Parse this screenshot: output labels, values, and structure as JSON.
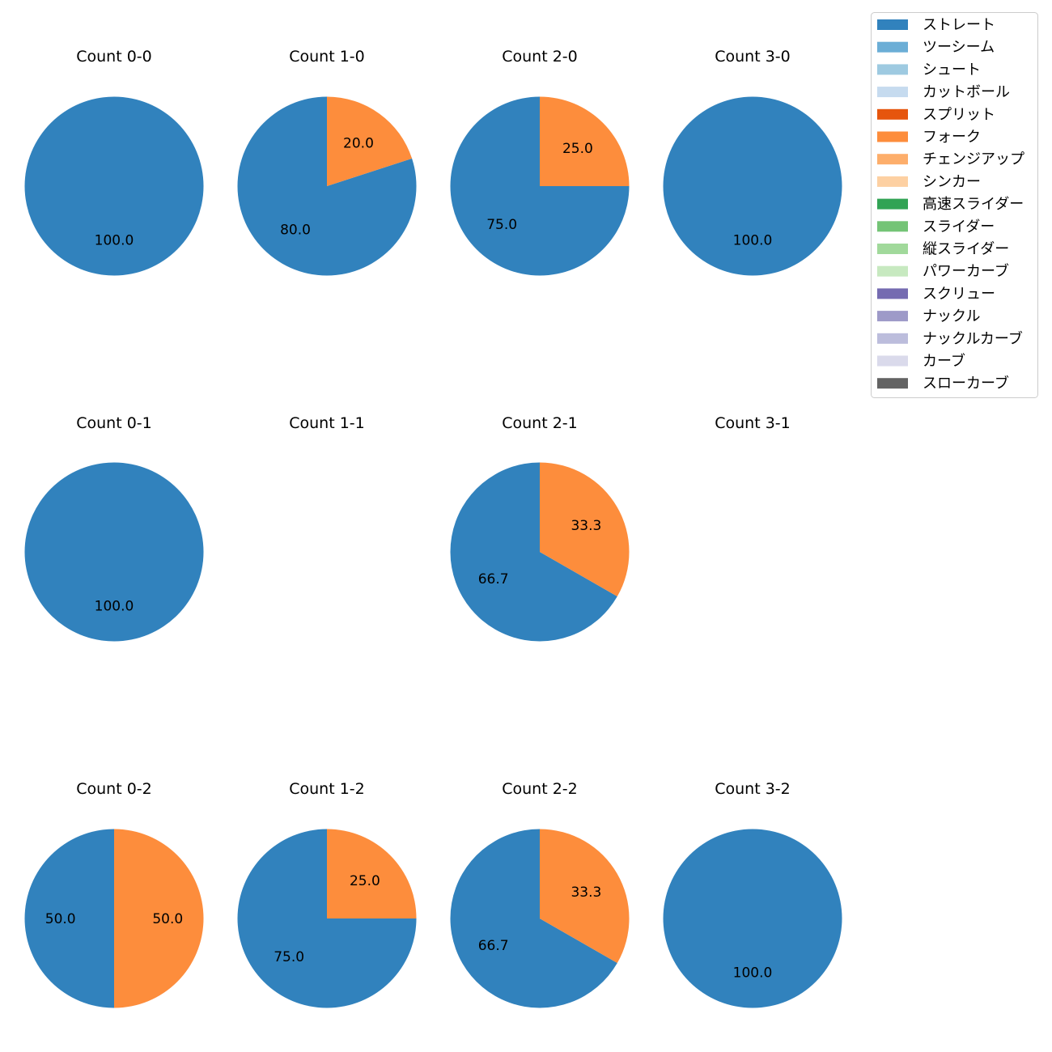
{
  "chart_data": {
    "type": "pie",
    "legend": {
      "placement": "top-right",
      "entries": [
        {
          "name": "ストレート",
          "color": "#3182bd"
        },
        {
          "name": "ツーシーム",
          "color": "#6baed6"
        },
        {
          "name": "シュート",
          "color": "#9ecae1"
        },
        {
          "name": "カットボール",
          "color": "#c6dbef"
        },
        {
          "name": "スプリット",
          "color": "#e6550d"
        },
        {
          "name": "フォーク",
          "color": "#fd8d3c"
        },
        {
          "name": "チェンジアップ",
          "color": "#fdae6b"
        },
        {
          "name": "シンカー",
          "color": "#fdd0a2"
        },
        {
          "name": "高速スライダー",
          "color": "#31a354"
        },
        {
          "name": "スライダー",
          "color": "#74c476"
        },
        {
          "name": "縦スライダー",
          "color": "#a1d99b"
        },
        {
          "name": "パワーカーブ",
          "color": "#c7e9c0"
        },
        {
          "name": "スクリュー",
          "color": "#756bb1"
        },
        {
          "name": "ナックル",
          "color": "#9e9ac8"
        },
        {
          "name": "ナックルカーブ",
          "color": "#bcbddc"
        },
        {
          "name": "カーブ",
          "color": "#dadaeb"
        },
        {
          "name": "スローカーブ",
          "color": "#636363"
        }
      ]
    },
    "charts": [
      {
        "title": "Count 0-0",
        "slices": [
          {
            "label": "ストレート",
            "value": 100.0
          }
        ]
      },
      {
        "title": "Count 1-0",
        "slices": [
          {
            "label": "ストレート",
            "value": 80.0
          },
          {
            "label": "フォーク",
            "value": 20.0
          }
        ]
      },
      {
        "title": "Count 2-0",
        "slices": [
          {
            "label": "ストレート",
            "value": 75.0
          },
          {
            "label": "フォーク",
            "value": 25.0
          }
        ]
      },
      {
        "title": "Count 3-0",
        "slices": [
          {
            "label": "ストレート",
            "value": 100.0
          }
        ]
      },
      {
        "title": "Count 0-1",
        "slices": [
          {
            "label": "ストレート",
            "value": 100.0
          }
        ]
      },
      {
        "title": "Count 1-1",
        "slices": []
      },
      {
        "title": "Count 2-1",
        "slices": [
          {
            "label": "ストレート",
            "value": 66.7
          },
          {
            "label": "フォーク",
            "value": 33.3
          }
        ]
      },
      {
        "title": "Count 3-1",
        "slices": []
      },
      {
        "title": "Count 0-2",
        "slices": [
          {
            "label": "ストレート",
            "value": 50.0
          },
          {
            "label": "フォーク",
            "value": 50.0
          }
        ]
      },
      {
        "title": "Count 1-2",
        "slices": [
          {
            "label": "ストレート",
            "value": 75.0
          },
          {
            "label": "フォーク",
            "value": 25.0
          }
        ]
      },
      {
        "title": "Count 2-2",
        "slices": [
          {
            "label": "ストレート",
            "value": 66.7
          },
          {
            "label": "フォーク",
            "value": 33.3
          }
        ]
      },
      {
        "title": "Count 3-2",
        "slices": [
          {
            "label": "ストレート",
            "value": 100.0
          }
        ]
      }
    ]
  }
}
